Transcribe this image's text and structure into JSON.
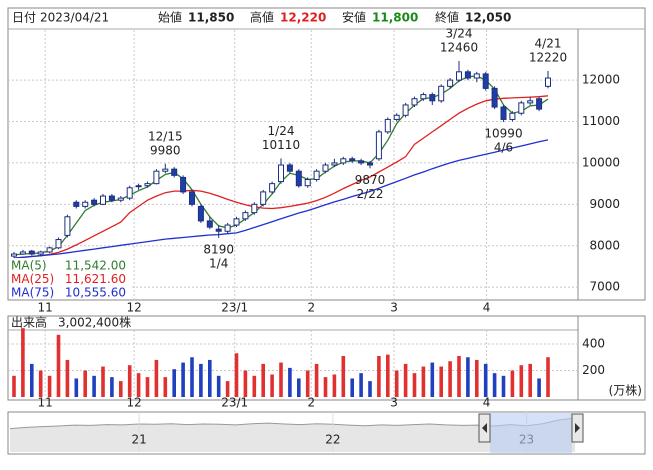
{
  "chart_data": {
    "type": "candlestick",
    "header": [
      {
        "label": "日付",
        "text": "2023/04/21"
      },
      {
        "label": "始値",
        "value": 11850,
        "value_label": "11,850",
        "color": "#222222"
      },
      {
        "label": "高値",
        "value": 12220,
        "value_label": "12,220",
        "color": "#e02020"
      },
      {
        "label": "安値",
        "value": 11800,
        "value_label": "11,800",
        "color": "#1a8a1a"
      },
      {
        "label": "終値",
        "value": 12050,
        "value_label": "12,050",
        "color": "#222222"
      }
    ],
    "candles": {
      "open": [
        7750,
        7800,
        7870,
        7800,
        7850,
        7950,
        8250,
        9050,
        8950,
        9100,
        9000,
        9200,
        9100,
        9150,
        9450,
        9450,
        9500,
        9800,
        9850,
        9650,
        9300,
        8950,
        8600,
        8400,
        8350,
        8500,
        8650,
        8800,
        9000,
        9300,
        9550,
        9950,
        9800,
        9450,
        9600,
        9800,
        9950,
        10000,
        10100,
        10050,
        10000,
        10100,
        10750,
        11050,
        11150,
        11400,
        11550,
        11650,
        11500,
        11850,
        12000,
        12200,
        12050,
        12150,
        11800,
        11350,
        11050,
        11200,
        11450,
        11550,
        11850
      ],
      "high": [
        7850,
        7900,
        7900,
        7880,
        7980,
        8200,
        8750,
        9100,
        9100,
        9150,
        9250,
        9250,
        9200,
        9450,
        9500,
        9550,
        9850,
        9980,
        9900,
        9700,
        9350,
        9000,
        8700,
        8500,
        8550,
        8700,
        8850,
        9050,
        9350,
        9550,
        10110,
        10000,
        9850,
        9650,
        9850,
        10000,
        10100,
        10150,
        10150,
        10100,
        10050,
        10800,
        11100,
        11200,
        11450,
        11600,
        11700,
        11700,
        11900,
        12050,
        12460,
        12250,
        12200,
        12200,
        11850,
        11400,
        11250,
        11500,
        11600,
        11600,
        12220
      ],
      "low": [
        7700,
        7780,
        7760,
        7750,
        7820,
        7920,
        8200,
        8900,
        8900,
        8950,
        8980,
        9050,
        9050,
        9100,
        9350,
        9400,
        9480,
        9750,
        9650,
        9250,
        8950,
        8550,
        8400,
        8190,
        8300,
        8450,
        8600,
        8750,
        8950,
        9250,
        9500,
        9750,
        9400,
        9400,
        9550,
        9750,
        9900,
        9950,
        10000,
        9950,
        9870,
        10050,
        10700,
        11000,
        11100,
        11350,
        11500,
        11400,
        11450,
        11800,
        11950,
        12000,
        11950,
        11750,
        11300,
        10990,
        11000,
        11150,
        11400,
        11250,
        11800
      ],
      "close": [
        7800,
        7850,
        7800,
        7850,
        7950,
        8150,
        8700,
        8950,
        9050,
        9000,
        9200,
        9100,
        9150,
        9400,
        9450,
        9500,
        9800,
        9850,
        9700,
        9300,
        9000,
        8600,
        8450,
        8350,
        8500,
        8650,
        8800,
        9000,
        9300,
        9500,
        9950,
        9800,
        9450,
        9600,
        9800,
        9950,
        10000,
        10100,
        10050,
        10000,
        9950,
        10750,
        11050,
        11150,
        11400,
        11550,
        11650,
        11500,
        11850,
        12000,
        12200,
        12050,
        12150,
        11800,
        11350,
        11050,
        11200,
        11450,
        11500,
        11300,
        12050
      ],
      "up_color": "#ffffff",
      "down_color": "#1f3fa8",
      "edge_color": "#1f2f7f"
    },
    "ylim": [
      6690,
      13210
    ],
    "yticks": [
      7000,
      8000,
      9000,
      10000,
      11000,
      12000
    ],
    "grid": true,
    "xticks": [
      {
        "value": 3.5,
        "label": "11"
      },
      {
        "value": 13.5,
        "label": "12"
      },
      {
        "value": 24.8,
        "label": "23/1"
      },
      {
        "value": 33.4,
        "label": "2"
      },
      {
        "value": 42.7,
        "label": "3"
      },
      {
        "value": 53.1,
        "label": "4"
      }
    ],
    "series": [
      {
        "name": "MA(5)",
        "color": "#2e7d32",
        "values": [
          7780,
          7800,
          7810,
          7830,
          7870,
          7980,
          8250,
          8550,
          8850,
          8980,
          9050,
          9080,
          9120,
          9220,
          9330,
          9420,
          9580,
          9720,
          9770,
          9620,
          9350,
          9000,
          8700,
          8480,
          8430,
          8500,
          8650,
          8800,
          9000,
          9250,
          9550,
          9750,
          9700,
          9600,
          9620,
          9780,
          9920,
          10020,
          10050,
          10050,
          10000,
          10230,
          10550,
          10950,
          11200,
          11400,
          11550,
          11580,
          11660,
          11800,
          11980,
          12080,
          12100,
          12000,
          11780,
          11400,
          11200,
          11250,
          11380,
          11400,
          11542
        ],
        "value_labels": [
          null,
          null,
          null,
          null,
          null,
          null,
          null,
          null,
          null,
          null,
          null,
          null,
          null,
          null,
          null,
          null,
          null,
          null,
          null,
          null,
          null,
          null,
          null,
          null,
          null,
          null,
          null,
          null,
          null,
          null,
          null,
          null,
          null,
          null,
          null,
          null,
          null,
          null,
          null,
          null,
          null,
          null,
          null,
          null,
          null,
          null,
          null,
          null,
          null,
          null,
          null,
          null,
          null,
          null,
          null,
          null,
          null,
          null,
          null,
          null,
          "11,542.00"
        ]
      },
      {
        "name": "MA(25)",
        "color": "#e02020",
        "values": [
          7700,
          7720,
          7740,
          7760,
          7790,
          7840,
          7920,
          8020,
          8130,
          8240,
          8350,
          8460,
          8570,
          8800,
          8950,
          9100,
          9200,
          9280,
          9320,
          9320,
          9340,
          9320,
          9270,
          9200,
          9120,
          9050,
          8990,
          8940,
          8910,
          8900,
          8920,
          8950,
          8990,
          9030,
          9090,
          9170,
          9270,
          9380,
          9480,
          9580,
          9660,
          9780,
          9900,
          10020,
          10150,
          10450,
          10600,
          10750,
          10900,
          11050,
          11200,
          11320,
          11420,
          11500,
          11540,
          11560,
          11570,
          11580,
          11590,
          11600,
          11621.6
        ],
        "value_labels": [
          null,
          null,
          null,
          null,
          null,
          null,
          null,
          null,
          null,
          null,
          null,
          null,
          null,
          null,
          null,
          null,
          null,
          null,
          null,
          null,
          null,
          null,
          null,
          null,
          null,
          null,
          null,
          null,
          null,
          null,
          null,
          null,
          null,
          null,
          null,
          null,
          null,
          null,
          null,
          null,
          null,
          null,
          null,
          null,
          null,
          null,
          null,
          null,
          null,
          null,
          null,
          null,
          null,
          null,
          null,
          null,
          null,
          null,
          null,
          null,
          "11,621.60"
        ]
      },
      {
        "name": "MA(75)",
        "color": "#2030d0",
        "values": [
          7700,
          7720,
          7740,
          7760,
          7780,
          7800,
          7830,
          7860,
          7890,
          7920,
          7950,
          7980,
          8010,
          8040,
          8070,
          8100,
          8130,
          8160,
          8180,
          8200,
          8220,
          8240,
          8260,
          8270,
          8290,
          8310,
          8370,
          8440,
          8510,
          8580,
          8650,
          8720,
          8790,
          8850,
          8920,
          8990,
          9060,
          9120,
          9190,
          9250,
          9310,
          9390,
          9470,
          9550,
          9630,
          9710,
          9780,
          9860,
          9930,
          10000,
          10060,
          10110,
          10160,
          10210,
          10260,
          10310,
          10360,
          10410,
          10460,
          10510,
          10555.6
        ],
        "value_labels": [
          null,
          null,
          null,
          null,
          null,
          null,
          null,
          null,
          null,
          null,
          null,
          null,
          null,
          null,
          null,
          null,
          null,
          null,
          null,
          null,
          null,
          null,
          null,
          null,
          null,
          null,
          null,
          null,
          null,
          null,
          null,
          null,
          null,
          null,
          null,
          null,
          null,
          null,
          null,
          null,
          null,
          null,
          null,
          null,
          null,
          null,
          null,
          null,
          null,
          null,
          null,
          null,
          null,
          null,
          null,
          null,
          null,
          null,
          null,
          null,
          "10,555.60"
        ]
      }
    ],
    "annotations": [
      {
        "date": "12/15",
        "value": 9980,
        "at": 17,
        "side": "above"
      },
      {
        "date": "1/24",
        "value": 10110,
        "at": 30,
        "side": "above"
      },
      {
        "date": "3/24",
        "value": 12460,
        "at": 50,
        "side": "above"
      },
      {
        "date": "4/21",
        "value": 12220,
        "at": 60,
        "side": "above"
      },
      {
        "date": "1/4",
        "value": 8190,
        "at": 23,
        "side": "below"
      },
      {
        "date": "2/22",
        "value": 9870,
        "at": 40,
        "side": "below"
      },
      {
        "date": "4/6",
        "value": 10990,
        "at": 55,
        "side": "below"
      }
    ],
    "volume": {
      "title": "出来高",
      "unit": "(万株)",
      "values": [
        160,
        520,
        250,
        200,
        160,
        470,
        280,
        140,
        200,
        160,
        230,
        150,
        120,
        240,
        180,
        150,
        280,
        150,
        210,
        260,
        300,
        250,
        280,
        160,
        120,
        330,
        200,
        160,
        250,
        170,
        260,
        220,
        140,
        200,
        250,
        150,
        170,
        310,
        140,
        180,
        120,
        310,
        320,
        200,
        250,
        180,
        230,
        260,
        230,
        270,
        310,
        300,
        280,
        250,
        180,
        160,
        200,
        240,
        250,
        140,
        300.24
      ],
      "value_labels": [
        null,
        null,
        null,
        null,
        null,
        null,
        null,
        null,
        null,
        null,
        null,
        null,
        null,
        null,
        null,
        null,
        null,
        null,
        null,
        null,
        null,
        null,
        null,
        null,
        null,
        null,
        null,
        null,
        null,
        null,
        null,
        null,
        null,
        null,
        null,
        null,
        null,
        null,
        null,
        null,
        null,
        null,
        null,
        null,
        null,
        null,
        null,
        null,
        null,
        null,
        null,
        null,
        null,
        null,
        null,
        null,
        null,
        null,
        null,
        null,
        "3,002,400株"
      ],
      "ylim": [
        0,
        506
      ],
      "yticks": [
        200,
        400
      ],
      "up_color": "#e03030",
      "down_color": "#2040c0"
    },
    "navigator": {
      "values": [
        8200,
        8600,
        8900,
        9100,
        9400,
        9300,
        9600,
        9500,
        9800,
        9700,
        9900,
        9600,
        9800,
        9700,
        9500,
        9900,
        10100,
        9800,
        9600,
        9900,
        9700,
        9400,
        9200,
        9500,
        9300,
        9600,
        9800,
        9500,
        9300,
        9400,
        9100,
        9600,
        9200,
        9900,
        11200,
        11900
      ],
      "ylim": [
        0,
        14000
      ],
      "xticks": [
        {
          "value": 8,
          "label": "21"
        },
        {
          "value": 20,
          "label": "22"
        },
        {
          "value": 32,
          "label": "23"
        }
      ]
    }
  }
}
